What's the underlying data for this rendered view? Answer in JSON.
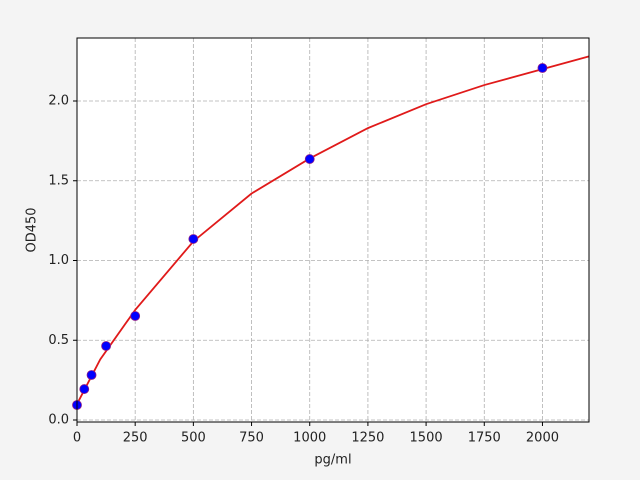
{
  "chart_data": {
    "type": "scatter",
    "x_label": "pg/ml",
    "y_label": "OD450",
    "xlim": [
      0,
      2200
    ],
    "ylim": [
      -0.0125,
      2.395
    ],
    "xticks": [
      0,
      250,
      500,
      750,
      1000,
      1250,
      1500,
      1750,
      2000
    ],
    "yticks": [
      {
        "value": 0,
        "label": "0.0"
      },
      0.5,
      {
        "value": 1,
        "label": "1.0"
      },
      1.5,
      {
        "value": 2,
        "label": "2.0"
      }
    ],
    "grid": true,
    "series": [
      {
        "type": "scatter",
        "color": "#0000ff",
        "x": [
          0,
          31.25,
          62.5,
          125,
          250,
          500,
          1000,
          2000
        ],
        "values": [
          0.094,
          0.194,
          0.282,
          0.464,
          0.652,
          1.135,
          1.636,
          2.207
        ]
      },
      {
        "type": "line",
        "color": "#e01a1a",
        "x": [
          0,
          50,
          100,
          250,
          500,
          750,
          1000,
          1250,
          1500,
          1750,
          2000,
          2200
        ],
        "values": [
          0.1,
          0.24,
          0.38,
          0.69,
          1.12,
          1.42,
          1.64,
          1.83,
          1.98,
          2.1,
          2.2,
          2.28
        ]
      }
    ]
  }
}
